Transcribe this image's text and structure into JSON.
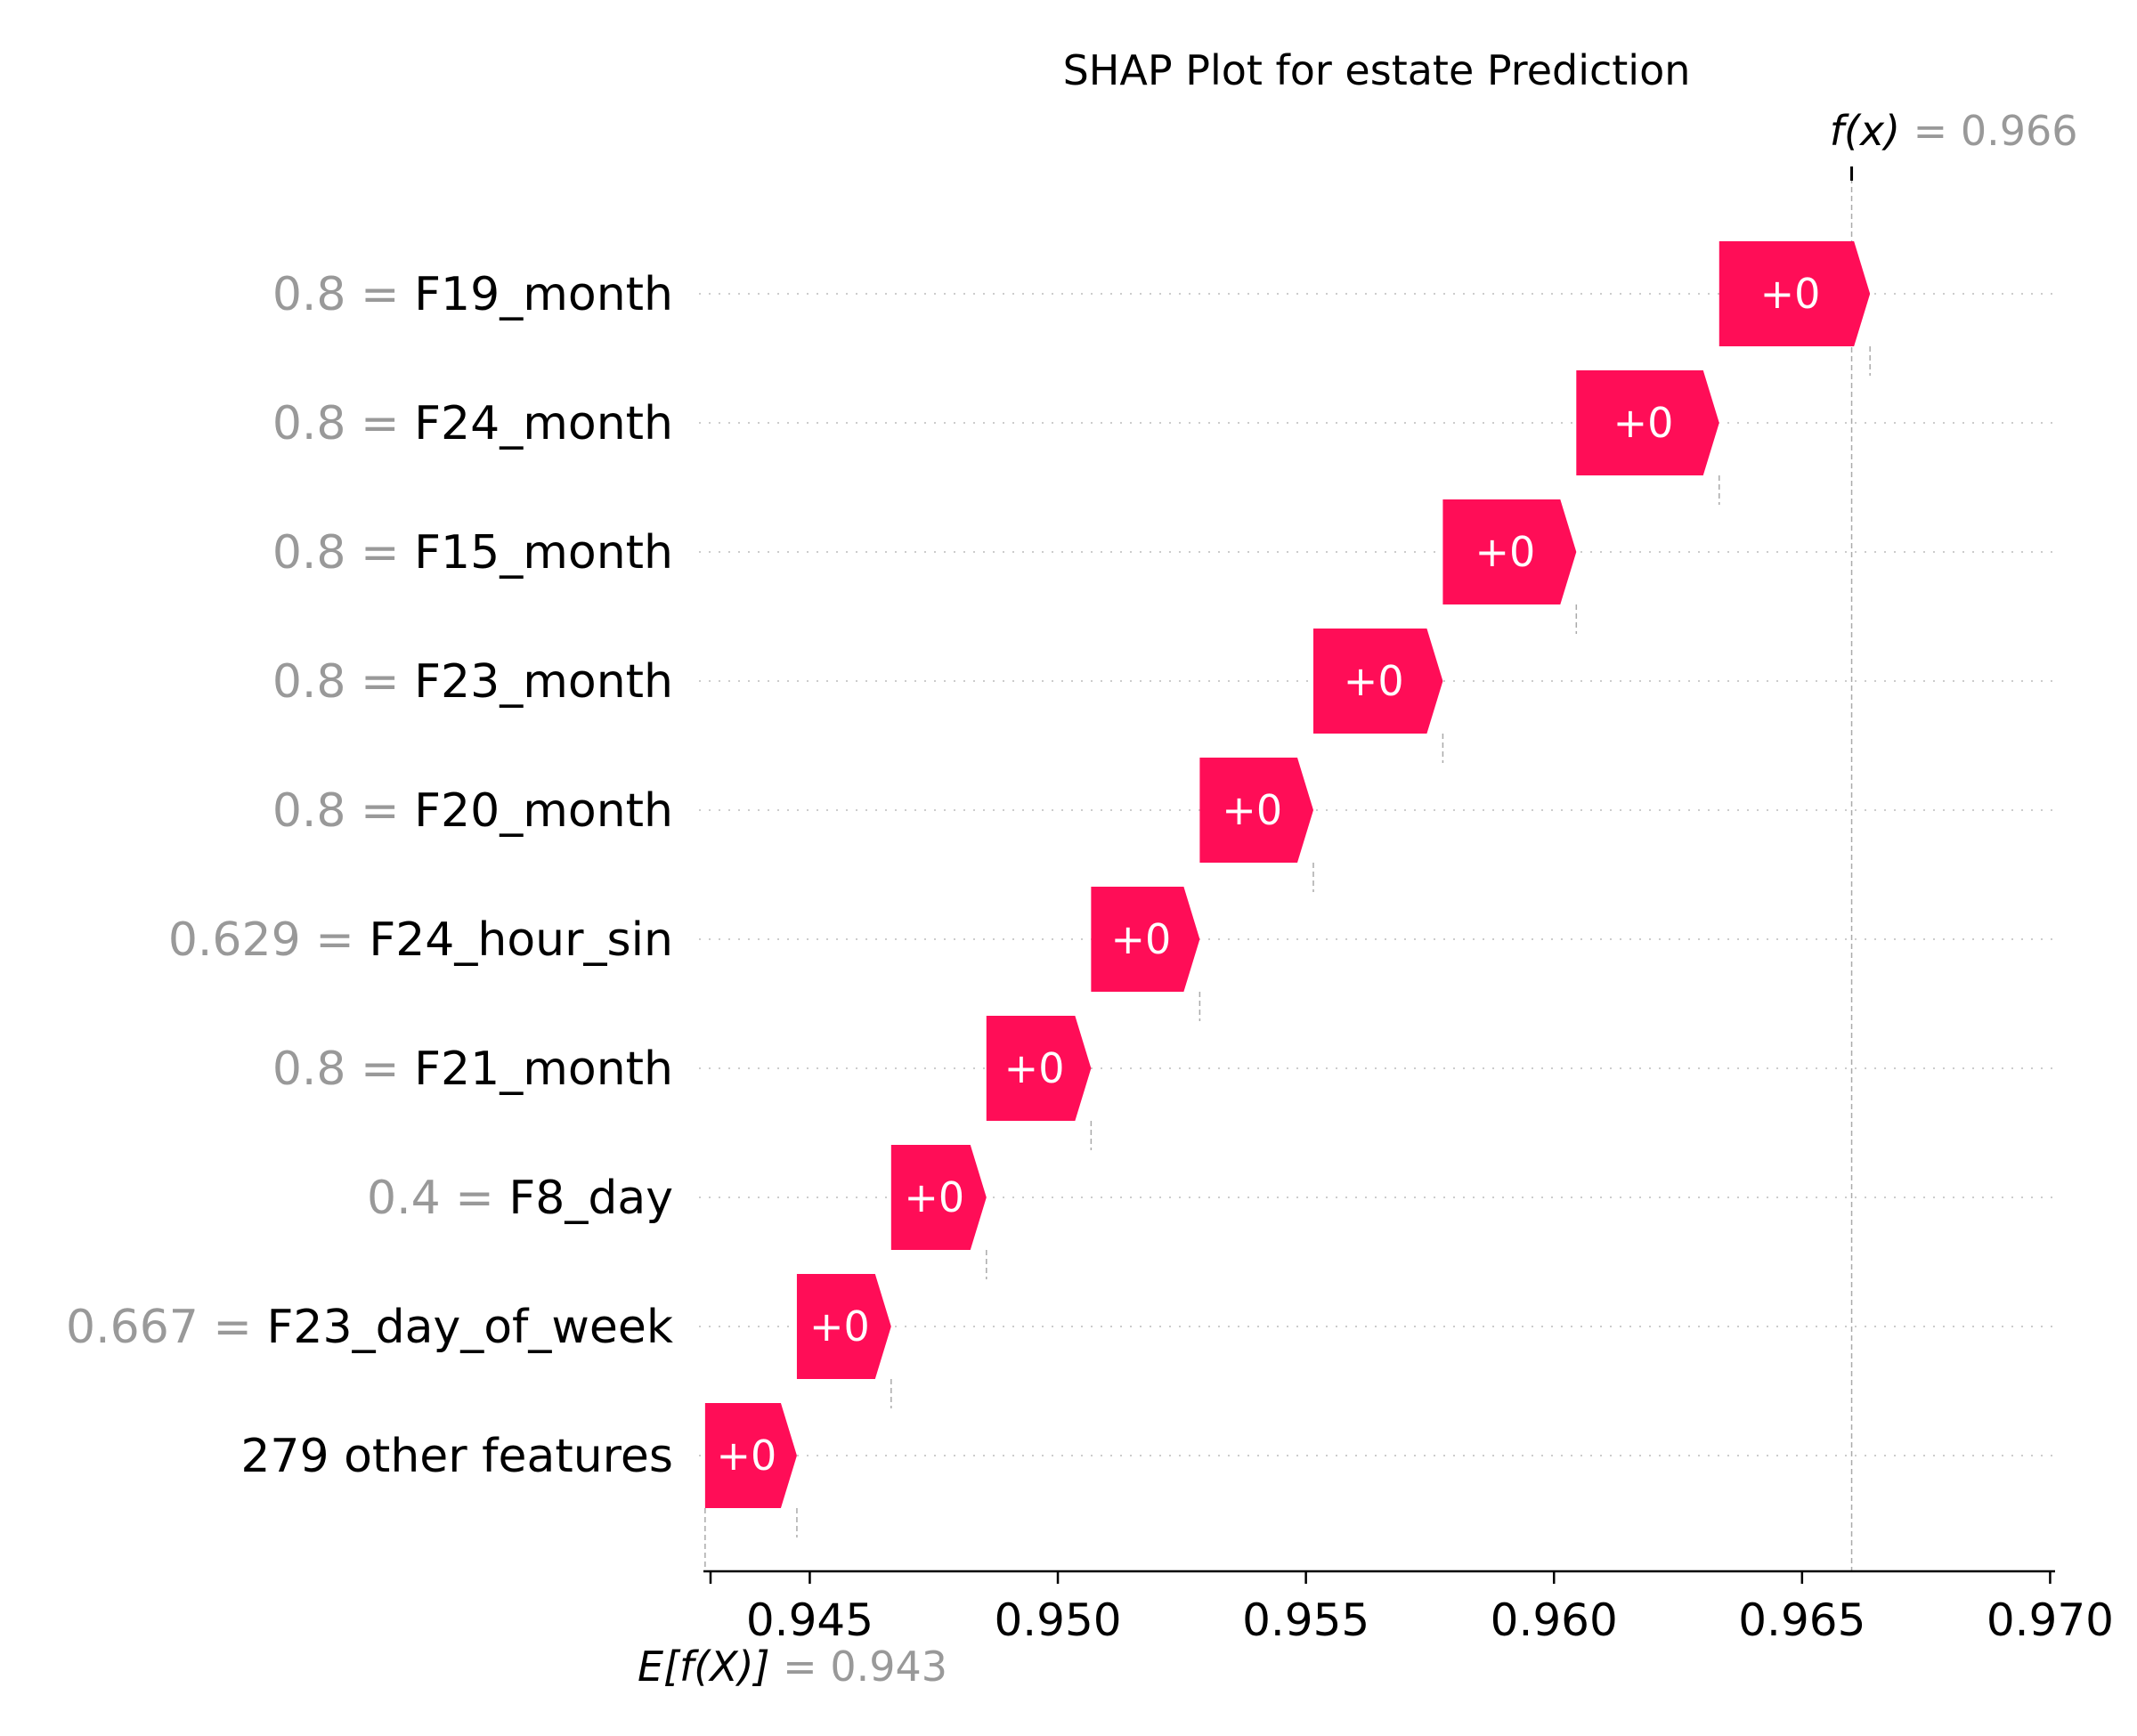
{
  "chart_data": {
    "type": "waterfall",
    "title": "SHAP Plot for estate Prediction",
    "base_value": 0.943,
    "base_value_label": "0.943",
    "output_value": 0.966,
    "output_value_label": "0.966",
    "base_label_prefix": "E[f(X)]",
    "output_label_prefix": "f(x)",
    "xlim": [
      0.943,
      0.9701
    ],
    "xticks": [
      0.945,
      0.95,
      0.955,
      0.96,
      0.965,
      0.97
    ],
    "xtick_labels": [
      "0.945",
      "0.950",
      "0.955",
      "0.960",
      "0.965",
      "0.970"
    ],
    "positive_color": "#ff0d57",
    "features": [
      {
        "value": "0.8",
        "name": "F19_month",
        "label": "+0",
        "start": 0.96333,
        "end": 0.96637
      },
      {
        "value": "0.8",
        "name": "F24_month",
        "label": "+0",
        "start": 0.96045,
        "end": 0.96333
      },
      {
        "value": "0.8",
        "name": "F15_month",
        "label": "+0",
        "start": 0.95776,
        "end": 0.96045
      },
      {
        "value": "0.8",
        "name": "F23_month",
        "label": "+0",
        "start": 0.95515,
        "end": 0.95776
      },
      {
        "value": "0.8",
        "name": "F20_month",
        "label": "+0",
        "start": 0.95286,
        "end": 0.95515
      },
      {
        "value": "0.629",
        "name": "F24_hour_sin",
        "label": "+0",
        "start": 0.95067,
        "end": 0.95286
      },
      {
        "value": "0.8",
        "name": "F21_month",
        "label": "+0",
        "start": 0.94856,
        "end": 0.95067
      },
      {
        "value": "0.4",
        "name": "F8_day",
        "label": "+0",
        "start": 0.94664,
        "end": 0.94856
      },
      {
        "value": "0.667",
        "name": "F23_day_of_week",
        "label": "+0",
        "start": 0.94474,
        "end": 0.94664
      },
      {
        "value": "",
        "name": "279 other features",
        "label": "+0",
        "start": 0.94289,
        "end": 0.94474
      }
    ]
  }
}
